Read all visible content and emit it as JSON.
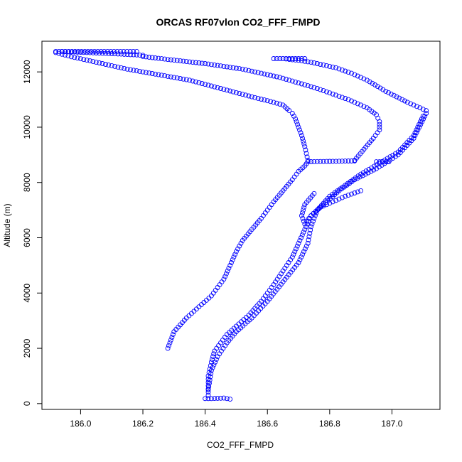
{
  "chart_data": {
    "type": "scatter",
    "title": "ORCAS RF07vlon CO2_FFF_FMPD",
    "xlabel": "CO2_FFF_FMPD",
    "ylabel": "Altitude (m)",
    "xlim": [
      185.91,
      187.12
    ],
    "ylim": [
      150,
      12750
    ],
    "xticks": [
      186.0,
      186.2,
      186.4,
      186.6,
      186.8,
      187.0
    ],
    "xtick_labels": [
      "186.0",
      "186.2",
      "186.4",
      "186.6",
      "186.8",
      "187.0"
    ],
    "yticks": [
      0,
      2000,
      4000,
      6000,
      8000,
      10000,
      12000
    ],
    "ytick_labels": [
      "0",
      "2000",
      "4000",
      "6000",
      "8000",
      "10000",
      "12000"
    ],
    "marker": "open-circle",
    "color": "#0000ff",
    "series": [
      {
        "segments": [
          {
            "x": [
              186.28,
              186.3,
              186.34,
              186.38,
              186.42,
              186.44,
              186.46,
              186.48,
              186.5,
              186.52,
              186.55,
              186.58,
              186.6,
              186.62,
              186.65,
              186.68,
              186.7,
              186.72,
              186.73
            ],
            "y": [
              2000,
              2600,
              3100,
              3500,
              3900,
              4200,
              4500,
              5000,
              5500,
              5900,
              6300,
              6700,
              7000,
              7300,
              7700,
              8100,
              8400,
              8600,
              8750
            ]
          },
          {
            "x": [
              186.73,
              186.88
            ],
            "y": [
              8750,
              8780
            ]
          },
          {
            "x": [
              186.73,
              186.72,
              186.71,
              186.7,
              186.69,
              186.68,
              186.67,
              186.65,
              186.62,
              186.55,
              186.45,
              186.35,
              186.25,
              186.15,
              186.05,
              185.97,
              185.92
            ],
            "y": [
              8800,
              9300,
              9700,
              10000,
              10300,
              10500,
              10600,
              10800,
              10900,
              11100,
              11400,
              11700,
              11900,
              12100,
              12350,
              12550,
              12700
            ]
          },
          {
            "x": [
              185.92,
              186.18
            ],
            "y": [
              12740,
              12740
            ]
          }
        ]
      },
      {
        "segments": [
          {
            "x": [
              186.41,
              186.41,
              186.42,
              186.43,
              186.45,
              186.47,
              186.5,
              186.54,
              186.58,
              186.62,
              186.65,
              186.68,
              186.7,
              186.72,
              186.74,
              186.78,
              186.83,
              186.88,
              186.95,
              187.02,
              187.07,
              187.11
            ],
            "y": [
              300,
              1000,
              1500,
              1900,
              2200,
              2500,
              2800,
              3200,
              3700,
              4300,
              4800,
              5300,
              5800,
              6300,
              6800,
              7200,
              7700,
              8100,
              8500,
              9000,
              9600,
              10500
            ]
          },
          {
            "x": [
              187.11,
              187.05,
              186.98,
              186.92,
              186.87,
              186.82,
              186.78,
              186.74,
              186.71,
              186.7,
              186.68,
              186.66
            ],
            "y": [
              10600,
              10900,
              11300,
              11700,
              11950,
              12150,
              12250,
              12350,
              12400,
              12420,
              12440,
              12470
            ]
          },
          {
            "x": [
              186.62,
              186.72
            ],
            "y": [
              12480,
              12480
            ]
          },
          {
            "x": [
              186.4,
              186.42,
              186.44,
              186.46,
              186.48
            ],
            "y": [
              180,
              180,
              190,
              200,
              160
            ]
          },
          {
            "x": [
              186.95,
              186.99
            ],
            "y": [
              8750,
              8750
            ]
          }
        ]
      },
      {
        "segments": [
          {
            "x": [
              186.41,
              186.42,
              186.44,
              186.47,
              186.5,
              186.55,
              186.6,
              186.65,
              186.7,
              186.73,
              186.74,
              186.76,
              186.8,
              186.85,
              186.9,
              186.96,
              187.02,
              187.07,
              187.1
            ],
            "y": [
              500,
              1200,
              1700,
              2200,
              2600,
              3100,
              3700,
              4400,
              5100,
              5800,
              6400,
              7000,
              7500,
              7900,
              8300,
              8700,
              9100,
              9700,
              10400
            ]
          },
          {
            "x": [
              186.75,
              186.72,
              186.71,
              186.72,
              186.74,
              186.77,
              186.81,
              186.85,
              186.9
            ],
            "y": [
              7600,
              7200,
              6800,
              6500,
              6800,
              7100,
              7300,
              7500,
              7700
            ]
          }
        ]
      },
      {
        "segments": [
          {
            "x": [
              186.88,
              186.91,
              186.94,
              186.96,
              186.96,
              186.95,
              186.92,
              186.86,
              186.76,
              186.64,
              186.52,
              186.4,
              186.28,
              186.2
            ],
            "y": [
              8800,
              9200,
              9600,
              9900,
              10200,
              10450,
              10700,
              11000,
              11400,
              11800,
              12100,
              12300,
              12450,
              12560
            ]
          },
          {
            "x": [
              186.2,
              186.12,
              186.04,
              185.98,
              185.94
            ],
            "y": [
              12600,
              12650,
              12690,
              12720,
              12740
            ]
          }
        ]
      }
    ]
  }
}
